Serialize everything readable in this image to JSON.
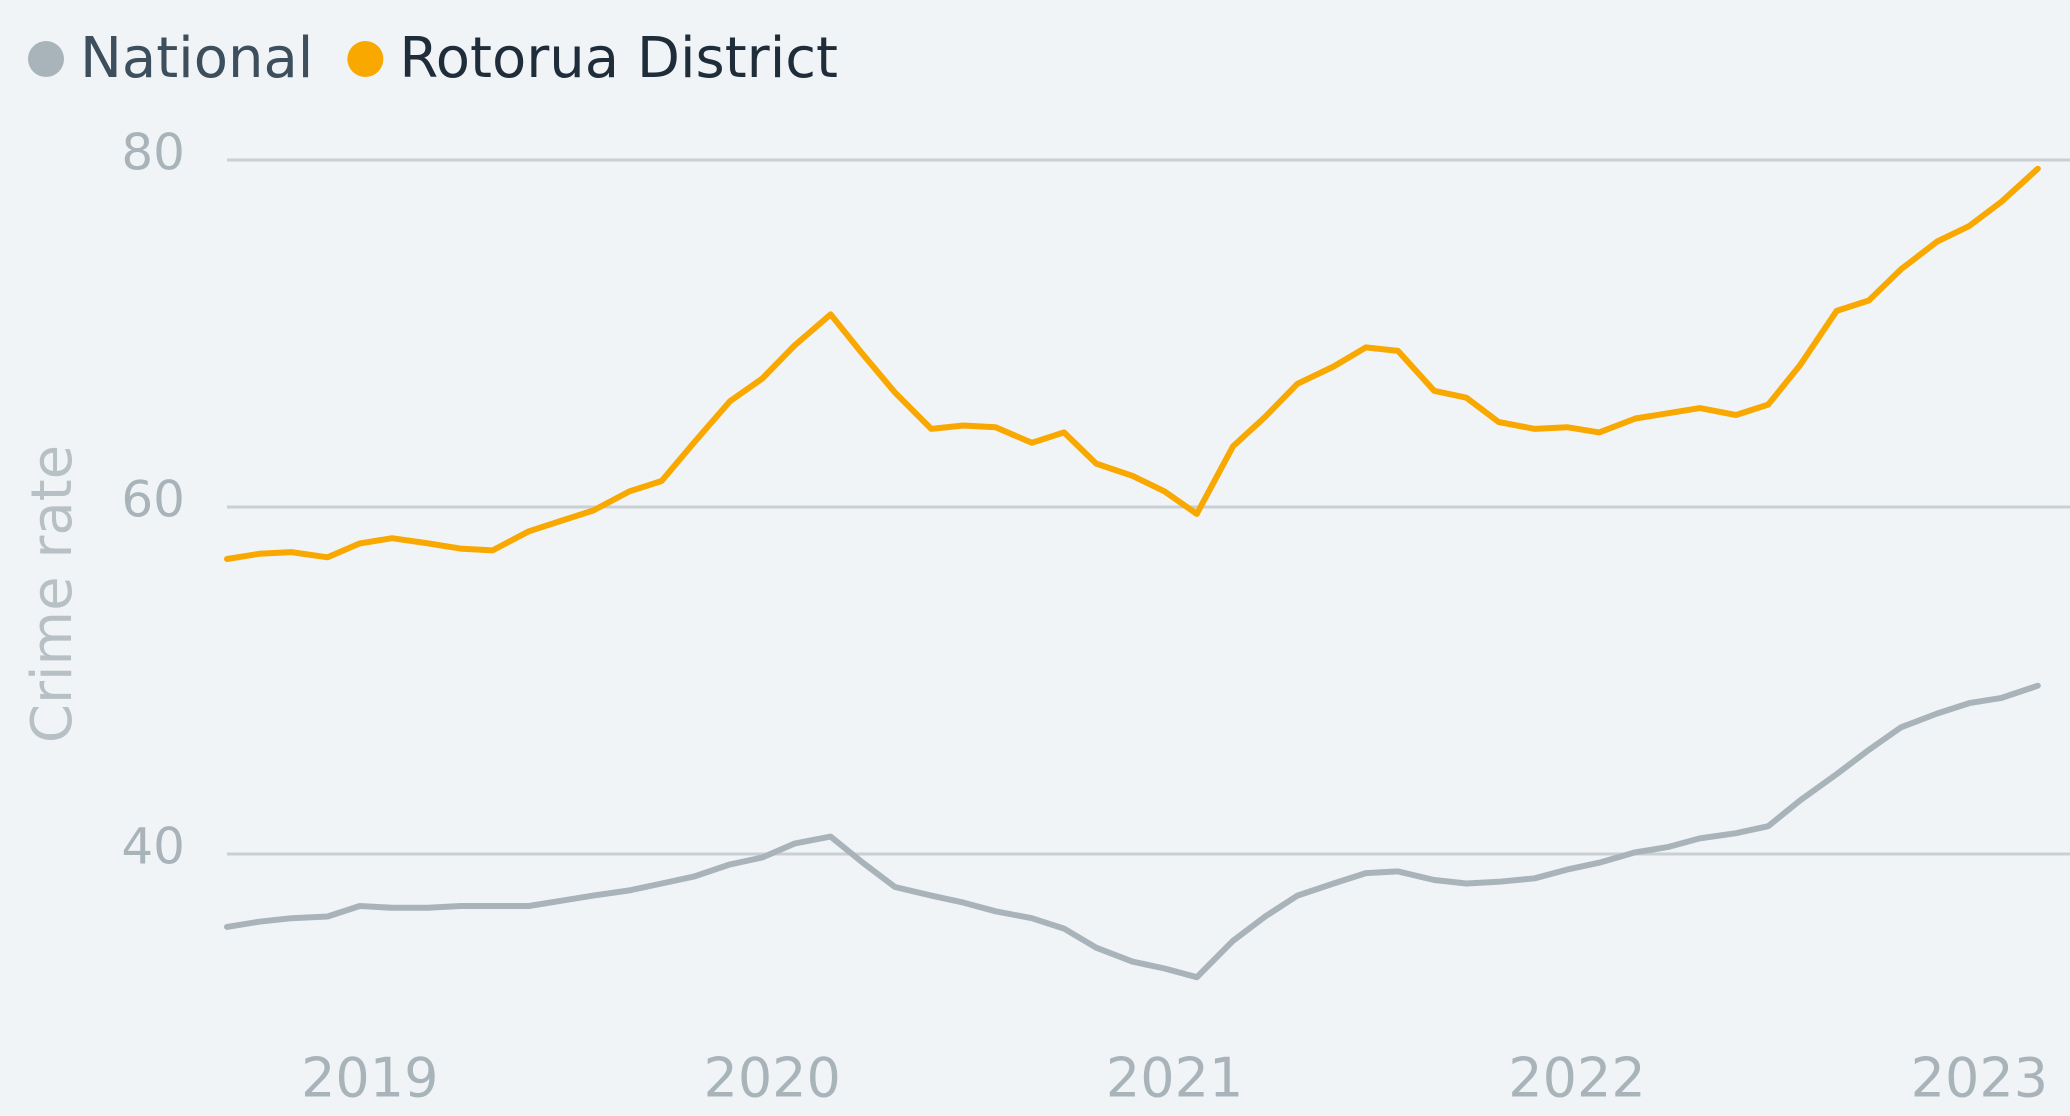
{
  "chart_data": {
    "type": "line",
    "y_label": "Crime rate",
    "x": [
      2018.67,
      2018.75,
      2018.83,
      2018.92,
      2019.0,
      2019.08,
      2019.17,
      2019.25,
      2019.33,
      2019.42,
      2019.5,
      2019.58,
      2019.67,
      2019.75,
      2019.83,
      2019.92,
      2020.0,
      2020.08,
      2020.17,
      2020.25,
      2020.33,
      2020.42,
      2020.5,
      2020.58,
      2020.67,
      2020.75,
      2020.83,
      2020.92,
      2021.0,
      2021.08,
      2021.17,
      2021.25,
      2021.33,
      2021.42,
      2021.5,
      2021.58,
      2021.67,
      2021.75,
      2021.83,
      2021.92,
      2022.0,
      2022.08,
      2022.17,
      2022.25,
      2022.33,
      2022.42,
      2022.5,
      2022.58,
      2022.67,
      2022.75,
      2022.83,
      2022.92,
      2023.0,
      2023.08,
      2023.17
    ],
    "series": [
      {
        "name": "National",
        "color": "#a9b4ba",
        "text_color": "#3d4f5c",
        "values": [
          35.8,
          36.1,
          36.3,
          36.4,
          37.0,
          36.9,
          36.9,
          37.0,
          37.0,
          37.0,
          37.3,
          37.6,
          37.9,
          38.3,
          38.7,
          39.4,
          39.8,
          40.6,
          41.0,
          39.5,
          38.1,
          37.6,
          37.2,
          36.7,
          36.3,
          35.7,
          34.6,
          33.8,
          33.4,
          32.9,
          35.0,
          36.4,
          37.6,
          38.3,
          38.9,
          39.0,
          38.5,
          38.3,
          38.4,
          38.6,
          39.1,
          39.5,
          40.1,
          40.4,
          40.9,
          41.2,
          41.6,
          43.1,
          44.6,
          46.0,
          47.3,
          48.1,
          48.7,
          49.0,
          49.7
        ]
      },
      {
        "name": "Rotorua District",
        "color": "#f9a800",
        "text_color": "#1f2d3a",
        "values": [
          57.0,
          57.3,
          57.4,
          57.1,
          57.9,
          58.2,
          57.9,
          57.6,
          57.5,
          58.6,
          59.2,
          59.8,
          60.9,
          61.5,
          63.7,
          66.1,
          67.4,
          69.3,
          71.1,
          68.8,
          66.6,
          64.5,
          64.7,
          64.6,
          63.7,
          64.3,
          62.5,
          61.8,
          60.9,
          59.6,
          63.5,
          65.2,
          67.1,
          68.1,
          69.2,
          69.0,
          66.7,
          66.3,
          64.9,
          64.5,
          64.6,
          64.3,
          65.1,
          65.4,
          65.7,
          65.3,
          65.9,
          68.2,
          71.3,
          71.9,
          73.7,
          75.3,
          76.2,
          77.6,
          79.5
        ]
      }
    ],
    "xlim": [
      2018.67,
      2023.25
    ],
    "xticks": [
      2019,
      2020,
      2021,
      2022,
      2023
    ],
    "ylim": [
      30,
      80
    ],
    "yticks": [
      40,
      60,
      80
    ],
    "grid": true
  }
}
